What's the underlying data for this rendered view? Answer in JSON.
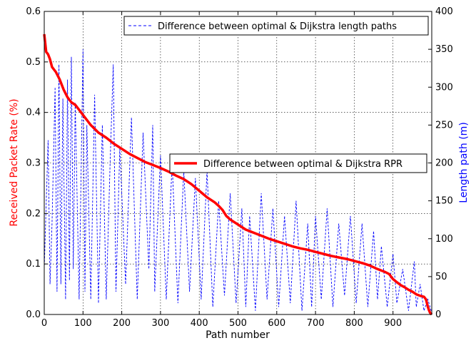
{
  "chart_data": {
    "type": "line",
    "xlabel": "Path number",
    "ylabel_left": "Received Packet Rate (%)",
    "ylabel_right": "Length path (m)",
    "xlim": [
      0,
      1000
    ],
    "ylim_left": [
      0,
      0.6
    ],
    "ylim_right": [
      0,
      400
    ],
    "x_ticks": [
      "0",
      "100",
      "200",
      "300",
      "400",
      "500",
      "600",
      "700",
      "800",
      "900"
    ],
    "y_left_ticks": [
      "0.0",
      "0.1",
      "0.2",
      "0.3",
      "0.4",
      "0.5",
      "0.6"
    ],
    "y_right_ticks": [
      "0",
      "50",
      "100",
      "150",
      "200",
      "250",
      "300",
      "350",
      "400"
    ],
    "grid": true,
    "colors": {
      "rpr": "#ff0000",
      "length": "#0000ff",
      "left_axis_label": "#ff0000",
      "right_axis_label": "#0000ff"
    },
    "series": [
      {
        "name": "Difference between optimal & Dijkstra RPR",
        "axis": "left",
        "style": "thick-solid",
        "x": [
          0,
          5,
          10,
          15,
          20,
          30,
          40,
          50,
          60,
          70,
          80,
          90,
          100,
          120,
          140,
          160,
          180,
          200,
          220,
          240,
          260,
          280,
          300,
          320,
          340,
          360,
          380,
          400,
          420,
          440,
          450,
          460,
          470,
          480,
          500,
          520,
          540,
          560,
          580,
          600,
          620,
          640,
          660,
          680,
          700,
          720,
          740,
          760,
          780,
          800,
          820,
          840,
          860,
          870,
          880,
          890,
          900,
          910,
          920,
          930,
          940,
          950,
          960,
          970,
          980,
          985,
          990,
          993,
          996,
          1000
        ],
        "y": [
          0.555,
          0.52,
          0.515,
          0.505,
          0.49,
          0.48,
          0.465,
          0.445,
          0.43,
          0.42,
          0.415,
          0.405,
          0.395,
          0.375,
          0.36,
          0.35,
          0.338,
          0.328,
          0.318,
          0.31,
          0.302,
          0.296,
          0.29,
          0.283,
          0.275,
          0.268,
          0.258,
          0.245,
          0.232,
          0.222,
          0.215,
          0.207,
          0.195,
          0.188,
          0.178,
          0.168,
          0.162,
          0.156,
          0.15,
          0.145,
          0.14,
          0.135,
          0.131,
          0.128,
          0.124,
          0.12,
          0.116,
          0.113,
          0.11,
          0.106,
          0.102,
          0.097,
          0.09,
          0.087,
          0.084,
          0.08,
          0.07,
          0.064,
          0.058,
          0.054,
          0.049,
          0.045,
          0.04,
          0.037,
          0.035,
          0.03,
          0.015,
          0.008,
          0.003,
          0.0
        ]
      },
      {
        "name": "Difference between optimal & Dijkstra length paths",
        "axis": "right",
        "style": "dashed",
        "x": [
          0,
          10,
          15,
          20,
          28,
          33,
          38,
          43,
          48,
          55,
          60,
          65,
          70,
          75,
          80,
          90,
          100,
          105,
          110,
          120,
          130,
          140,
          150,
          160,
          170,
          178,
          185,
          195,
          210,
          225,
          240,
          255,
          270,
          280,
          285,
          300,
          315,
          330,
          345,
          360,
          375,
          390,
          405,
          420,
          435,
          450,
          465,
          480,
          495,
          510,
          520,
          530,
          545,
          560,
          575,
          590,
          605,
          620,
          635,
          650,
          665,
          680,
          690,
          700,
          715,
          730,
          745,
          760,
          775,
          790,
          805,
          820,
          835,
          850,
          860,
          870,
          885,
          900,
          910,
          925,
          940,
          955,
          960,
          970,
          980,
          990,
          1000
        ],
        "y": [
          60,
          230,
          40,
          120,
          300,
          30,
          330,
          40,
          285,
          20,
          310,
          45,
          340,
          60,
          280,
          20,
          350,
          30,
          250,
          20,
          290,
          15,
          250,
          20,
          200,
          330,
          30,
          220,
          40,
          260,
          20,
          240,
          60,
          250,
          30,
          210,
          20,
          200,
          15,
          190,
          30,
          180,
          20,
          190,
          10,
          150,
          25,
          160,
          15,
          140,
          10,
          130,
          5,
          160,
          20,
          140,
          10,
          130,
          15,
          150,
          5,
          120,
          10,
          130,
          20,
          140,
          10,
          120,
          25,
          130,
          15,
          120,
          10,
          110,
          20,
          90,
          10,
          80,
          15,
          60,
          5,
          70,
          10,
          40,
          5,
          20,
          2
        ]
      }
    ]
  }
}
